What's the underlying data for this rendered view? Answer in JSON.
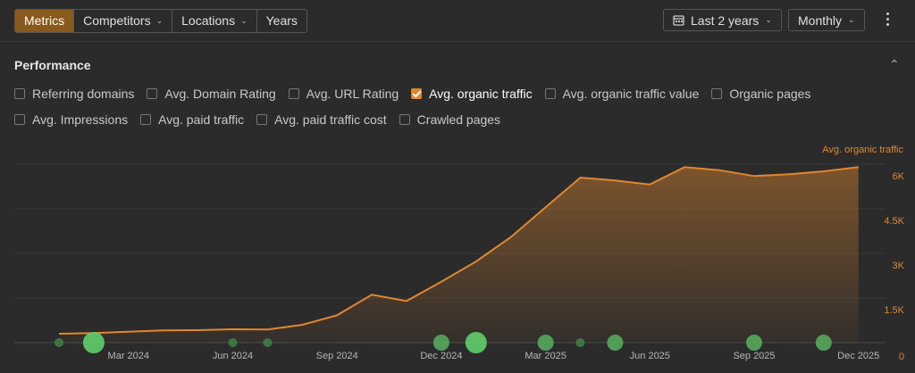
{
  "toolbar": {
    "tabs": [
      "Metrics",
      "Competitors",
      "Locations",
      "Years"
    ],
    "date_range": "Last 2 years",
    "granularity": "Monthly"
  },
  "section": {
    "title": "Performance"
  },
  "metrics": [
    {
      "label": "Referring domains",
      "checked": false
    },
    {
      "label": "Avg. Domain Rating",
      "checked": false
    },
    {
      "label": "Avg. URL Rating",
      "checked": false
    },
    {
      "label": "Avg. organic traffic",
      "checked": true
    },
    {
      "label": "Avg. organic traffic value",
      "checked": false
    },
    {
      "label": "Organic pages",
      "checked": false
    },
    {
      "label": "Avg. Impressions",
      "checked": false
    },
    {
      "label": "Avg. paid traffic",
      "checked": false
    },
    {
      "label": "Avg. paid traffic cost",
      "checked": false
    },
    {
      "label": "Crawled pages",
      "checked": false
    }
  ],
  "colors": {
    "accent": "#e0872f",
    "event": "#4caf50"
  },
  "chart_data": {
    "type": "area",
    "series": [
      {
        "name": "Avg. organic traffic",
        "x": [
          "Jan 2024",
          "Feb 2024",
          "Mar 2024",
          "Apr 2024",
          "May 2024",
          "Jun 2024",
          "Jul 2024",
          "Aug 2024",
          "Sep 2024",
          "Oct 2024",
          "Nov 2024",
          "Dec 2024",
          "Jan 2025",
          "Feb 2025",
          "Mar 2025",
          "Apr 2025",
          "May 2025",
          "Jun 2025",
          "Jul 2025",
          "Aug 2025",
          "Sep 2025",
          "Oct 2025",
          "Nov 2025",
          "Dec 2025"
        ],
        "values": [
          300,
          320,
          370,
          410,
          420,
          450,
          440,
          600,
          920,
          1610,
          1400,
          2050,
          2730,
          3550,
          4550,
          5550,
          5450,
          5320,
          5900,
          5800,
          5600,
          5660,
          5760,
          5900
        ]
      }
    ],
    "x_tick_labels": [
      "Mar 2024",
      "Jun 2024",
      "Sep 2024",
      "Dec 2024",
      "Mar 2025",
      "Jun 2025",
      "Sep 2025",
      "Dec 2025"
    ],
    "y_ticks": [
      "0",
      "1.5K",
      "3K",
      "4.5K",
      "6K"
    ],
    "y_max": 6000,
    "ylabel": "Avg. organic traffic",
    "grid": true,
    "events": [
      {
        "month": "Jan 2024",
        "size": "small"
      },
      {
        "month": "Feb 2024",
        "size": "large"
      },
      {
        "month": "Jun 2024",
        "size": "small"
      },
      {
        "month": "Jul 2024",
        "size": "small"
      },
      {
        "month": "Dec 2024",
        "size": "medium"
      },
      {
        "month": "Jan 2025",
        "size": "large"
      },
      {
        "month": "Mar 2025",
        "size": "medium"
      },
      {
        "month": "Apr 2025",
        "size": "small"
      },
      {
        "month": "May 2025",
        "size": "medium"
      },
      {
        "month": "Sep 2025",
        "size": "medium"
      },
      {
        "month": "Nov 2025",
        "size": "medium"
      }
    ]
  }
}
